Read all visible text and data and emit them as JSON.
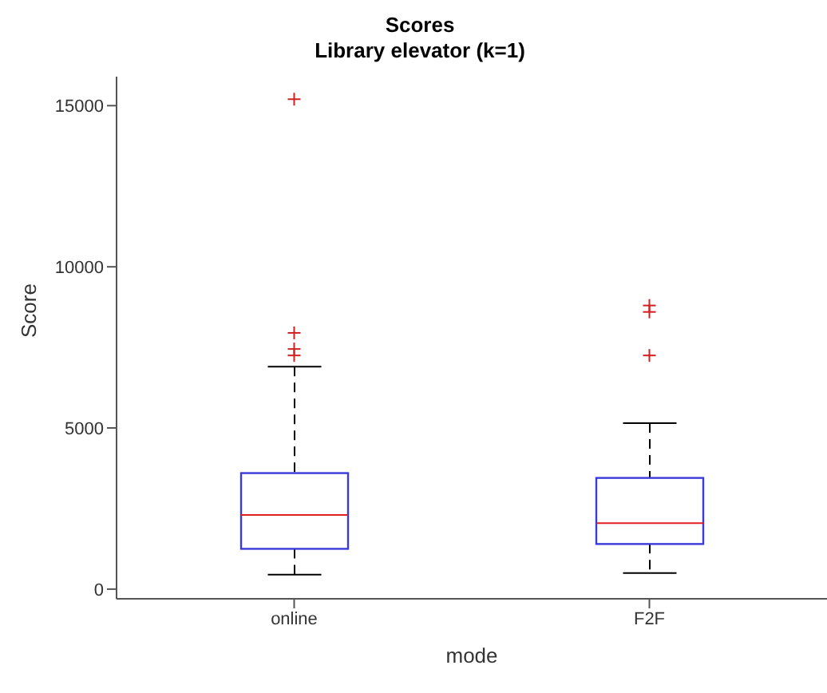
{
  "chart_data": {
    "type": "box",
    "title": "Scores",
    "subtitle": "Library elevator (k=1)",
    "xlabel": "mode",
    "ylabel": "Score",
    "categories": [
      "online",
      "F2F"
    ],
    "color": "#3a3ad8",
    "boxes": [
      {
        "low": 450,
        "q1": 1250,
        "median": 2300,
        "q3": 3600,
        "high": 6900,
        "outliers": [
          7250,
          7450,
          7950,
          15200
        ]
      },
      {
        "low": 500,
        "q1": 1400,
        "median": 2050,
        "q3": 3450,
        "high": 5150,
        "outliers": [
          7250,
          8600,
          8800
        ]
      }
    ],
    "ylim": [
      -300,
      15900
    ],
    "yticks": [
      0,
      5000,
      10000,
      15000
    ]
  }
}
